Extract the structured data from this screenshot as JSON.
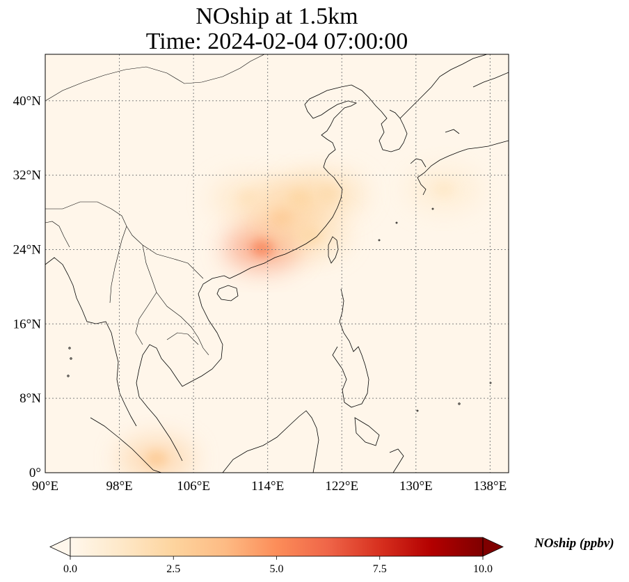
{
  "title": {
    "line1": "NOship at 1.5km",
    "line2": "Time: 2024-02-04 07:00:00"
  },
  "map": {
    "projection": "PlateCarree",
    "lon_range": [
      90,
      140
    ],
    "lat_range": [
      0,
      45
    ],
    "gridlines": true,
    "lon_ticks": [
      {
        "value": 90,
        "label": "90°E"
      },
      {
        "value": 98,
        "label": "98°E"
      },
      {
        "value": 106,
        "label": "106°E"
      },
      {
        "value": 114,
        "label": "114°E"
      },
      {
        "value": 122,
        "label": "122°E"
      },
      {
        "value": 130,
        "label": "130°E"
      },
      {
        "value": 138,
        "label": "138°E"
      }
    ],
    "lat_ticks": [
      {
        "value": 0,
        "label": "0°"
      },
      {
        "value": 8,
        "label": "8°N"
      },
      {
        "value": 16,
        "label": "16°N"
      },
      {
        "value": 24,
        "label": "24°N"
      },
      {
        "value": 32,
        "label": "32°N"
      },
      {
        "value": 40,
        "label": "40°N"
      }
    ],
    "field": "NOship",
    "hotspots": [
      {
        "lon": 113.5,
        "lat": 24.2,
        "value": 5.5
      },
      {
        "lon": 115.5,
        "lat": 27.5,
        "value": 3.5
      },
      {
        "lon": 117.5,
        "lat": 29.5,
        "value": 2.5
      },
      {
        "lon": 120.5,
        "lat": 30.0,
        "value": 2.0
      },
      {
        "lon": 112.0,
        "lat": 29.5,
        "value": 1.6
      },
      {
        "lon": 102.0,
        "lat": 1.5,
        "value": 3.0
      },
      {
        "lon": 118.5,
        "lat": 25.5,
        "value": 2.2
      },
      {
        "lon": 133.0,
        "lat": 30.5,
        "value": 1.2
      }
    ]
  },
  "colorbar": {
    "colormap": "OrRd",
    "min": 0.0,
    "max": 10.0,
    "extend": "both",
    "ticks": [
      {
        "value": 0.0,
        "label": "0.0"
      },
      {
        "value": 2.5,
        "label": "2.5"
      },
      {
        "value": 5.0,
        "label": "5.0"
      },
      {
        "value": 7.5,
        "label": "7.5"
      },
      {
        "value": 10.0,
        "label": "10.0"
      }
    ],
    "label": "NOship (ppbv)",
    "colors": [
      "#fff7ec",
      "#fee8c8",
      "#fdd49e",
      "#fdbb84",
      "#fc8d59",
      "#ef6548",
      "#d7301f",
      "#b30000",
      "#7f0000"
    ]
  }
}
